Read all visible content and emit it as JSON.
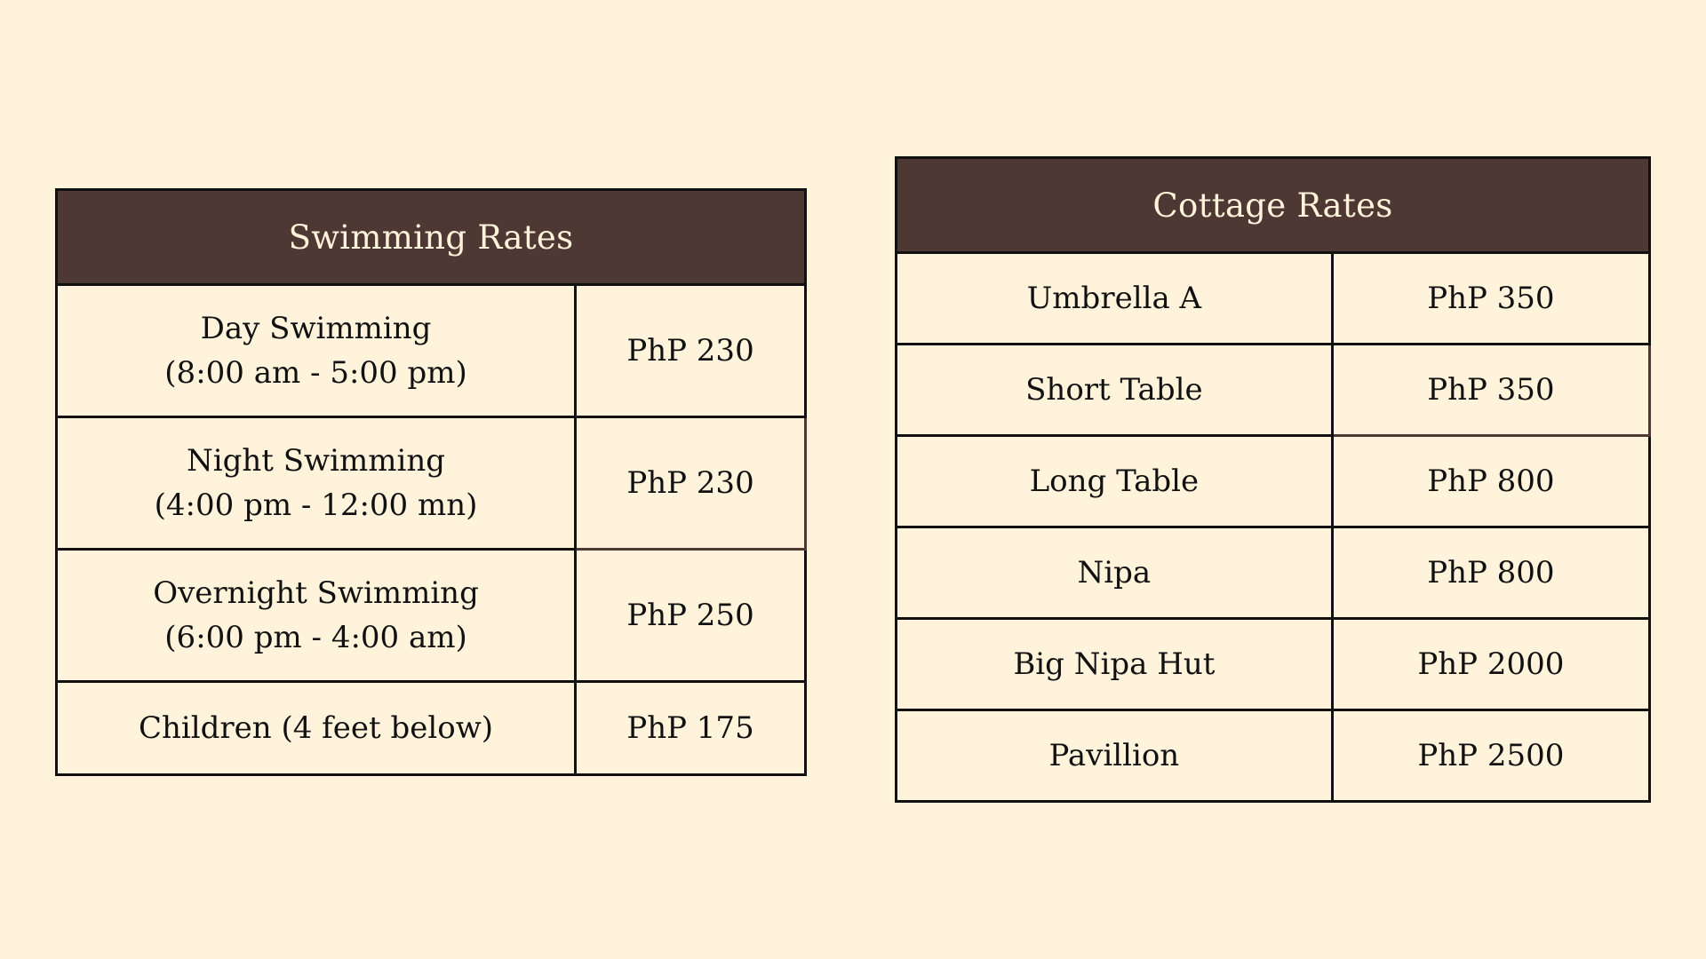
{
  "swimming": {
    "title": "Swimming Rates",
    "rows": [
      {
        "name": "Day Swimming",
        "hours": "(8:00 am - 5:00 pm)",
        "price": "PhP 230"
      },
      {
        "name": "Night Swimming",
        "hours": "(4:00 pm - 12:00 mn)",
        "price": "PhP 230"
      },
      {
        "name": "Overnight Swimming",
        "hours": "(6:00 pm - 4:00 am)",
        "price": "PhP 250"
      },
      {
        "name": "Children (4 feet below)",
        "price": "PhP 175"
      }
    ]
  },
  "cottage": {
    "title": "Cottage Rates",
    "rows": [
      {
        "name": "Umbrella A",
        "price": "PhP 350"
      },
      {
        "name": "Short Table",
        "price": "PhP 350"
      },
      {
        "name": "Long Table",
        "price": "PhP 800"
      },
      {
        "name": "Nipa",
        "price": "PhP 800"
      },
      {
        "name": "Big Nipa Hut",
        "price": "PhP 2000"
      },
      {
        "name": "Pavillion",
        "price": "PhP 2500"
      }
    ]
  },
  "colors": {
    "background": "#FFF4DB",
    "header": "#4E3833",
    "border": "#111111",
    "header_text": "#FFF4DB"
  }
}
